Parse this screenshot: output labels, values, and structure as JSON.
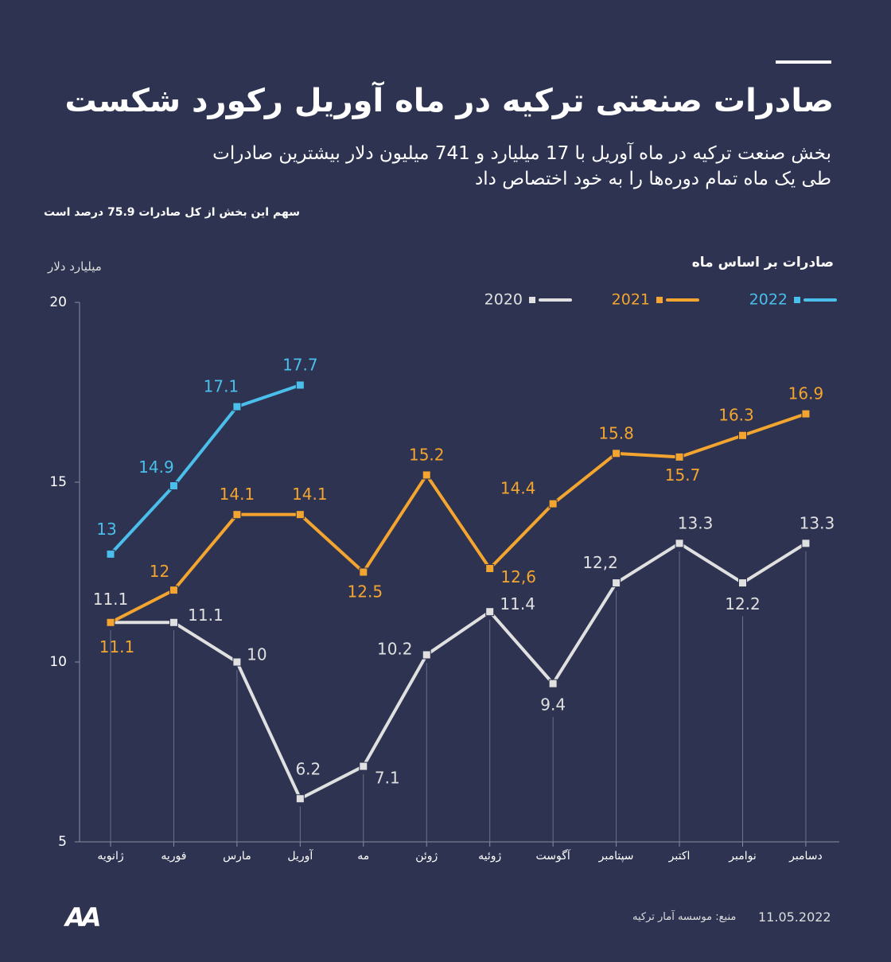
{
  "chart_data": {
    "type": "line",
    "title": "صادرات صنعتی ترکیه در ماه آوریل رکورد شکست",
    "subtitle": [
      "بخش صنعت ترکیه در ماه آوریل با 17 میلیارد و 741 میلیون دلار بیشترین صادرات",
      "طی یک ماه تمام دوره‌ها را به خود اختصاص داد"
    ],
    "note": "سهم این بخش از کل صادرات 75.9 درصد است",
    "y_label": "میلیارد دلار",
    "legend_title": "صادرات بر اساس ماه",
    "categories": [
      "ژانویه",
      "فوریه",
      "مارس",
      "آوریل",
      "مه",
      "ژوئن",
      "ژوئیه",
      "آگوست",
      "سپتامبر",
      "اکتبر",
      "نوامبر",
      "دسامبر"
    ],
    "series": [
      {
        "name": "2020",
        "color": "#e0e0e0",
        "values": [
          11.1,
          11.1,
          10,
          6.2,
          7.1,
          10.2,
          11.4,
          9.4,
          12.2,
          13.3,
          12.2,
          13.3
        ],
        "value_labels": [
          "11.1",
          "11.1",
          "10",
          "6.2",
          "7.1",
          "10.2",
          "11.4",
          "9.4",
          "12,2",
          "13.3",
          "12.2",
          "13.3"
        ]
      },
      {
        "name": "2021",
        "color": "#f3a530",
        "values": [
          11.1,
          12,
          14.1,
          14.1,
          12.5,
          15.2,
          12.6,
          14.4,
          15.8,
          15.7,
          16.3,
          16.9
        ],
        "value_labels": [
          "11.1",
          "12",
          "14.1",
          "14.1",
          "12.5",
          "15.2",
          "12,6",
          "14.4",
          "15.8",
          "15.7",
          "16.3",
          "16.9"
        ]
      },
      {
        "name": "2022",
        "color": "#4bbfec",
        "values": [
          13,
          14.9,
          17.1,
          17.7,
          null,
          null,
          null,
          null,
          null,
          null,
          null,
          null
        ]
      }
    ],
    "ylim": [
      5,
      20
    ],
    "yticks": [
      5,
      10,
      15,
      20
    ],
    "source": "منبع: موسسه آمار ترکیه",
    "date": "11.05.2022",
    "logo": "AA"
  }
}
